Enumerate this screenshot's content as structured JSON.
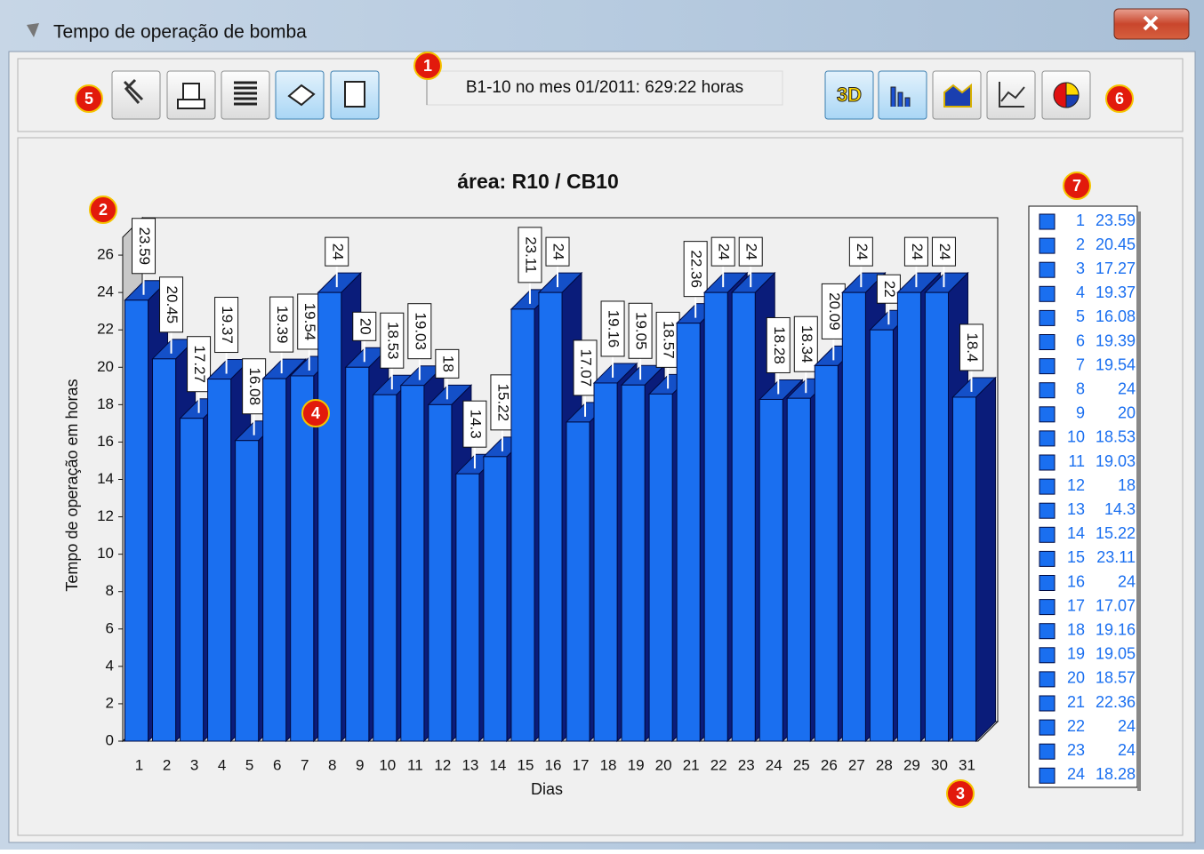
{
  "window": {
    "title": "Tempo de operação de bomba"
  },
  "toolbar": {
    "status": "B1-10 no mes 01/2011: 629:22 horas",
    "button_3d": "3D"
  },
  "callouts": [
    "1",
    "2",
    "3",
    "4",
    "5",
    "6",
    "7"
  ],
  "chart_data": {
    "type": "bar3d",
    "title": "área: R10 / CB10",
    "xlabel": "Dias",
    "ylabel": "Tempo de operação em horas",
    "categories": [
      "1",
      "2",
      "3",
      "4",
      "5",
      "6",
      "7",
      "8",
      "9",
      "10",
      "11",
      "12",
      "13",
      "14",
      "15",
      "16",
      "17",
      "18",
      "19",
      "20",
      "21",
      "22",
      "23",
      "24",
      "25",
      "26",
      "27",
      "28",
      "29",
      "30",
      "31"
    ],
    "values": [
      23.59,
      20.45,
      17.27,
      19.37,
      16.08,
      19.39,
      19.54,
      24,
      20,
      18.53,
      19.03,
      18,
      14.3,
      15.22,
      23.11,
      24,
      17.07,
      19.16,
      19.05,
      18.57,
      22.36,
      24,
      24,
      18.28,
      18.34,
      20.09,
      24,
      22,
      24,
      24,
      18.4
    ],
    "color": "#1a6ff0",
    "ylim": [
      0,
      28
    ],
    "yticks": [
      0,
      2,
      4,
      6,
      8,
      10,
      12,
      14,
      16,
      18,
      20,
      22,
      24,
      26
    ],
    "grid": false
  }
}
